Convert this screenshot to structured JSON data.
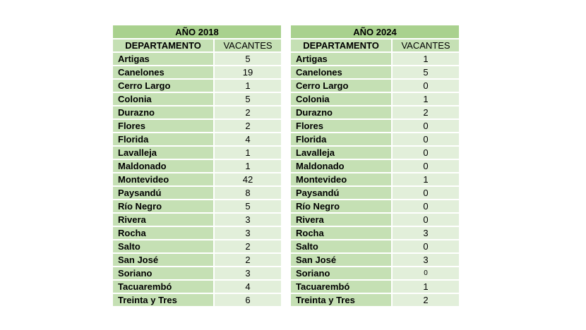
{
  "tables": [
    {
      "year_title": "AÑO 2018",
      "headers": [
        "DEPARTAMENTO",
        "VACANTES"
      ],
      "rows": [
        [
          "Artigas",
          "5"
        ],
        [
          "Canelones",
          "19"
        ],
        [
          "Cerro Largo",
          "1"
        ],
        [
          "Colonia",
          "5"
        ],
        [
          "Durazno",
          "2"
        ],
        [
          "Flores",
          "2"
        ],
        [
          "Florida",
          "4"
        ],
        [
          "Lavalleja",
          "1"
        ],
        [
          "Maldonado",
          "1"
        ],
        [
          "Montevideo",
          "42"
        ],
        [
          "Paysandú",
          "8"
        ],
        [
          "Río Negro",
          "5"
        ],
        [
          "Rivera",
          "3"
        ],
        [
          "Rocha",
          "3"
        ],
        [
          "Salto",
          "2"
        ],
        [
          "San José",
          "2"
        ],
        [
          "Soriano",
          "3"
        ],
        [
          "Tacuarembó",
          "4"
        ],
        [
          "Treinta y Tres",
          "6"
        ]
      ]
    },
    {
      "year_title": "AÑO 2024",
      "headers": [
        "DEPARTAMENTO",
        "VACANTES"
      ],
      "rows": [
        [
          "Artigas",
          "1"
        ],
        [
          "Canelones",
          "5"
        ],
        [
          "Cerro Largo",
          "0"
        ],
        [
          "Colonia",
          "1"
        ],
        [
          "Durazno",
          "2"
        ],
        [
          "Flores",
          "0"
        ],
        [
          "Florida",
          "0"
        ],
        [
          "Lavalleja",
          "0"
        ],
        [
          "Maldonado",
          "0"
        ],
        [
          "Montevideo",
          "1"
        ],
        [
          "Paysandú",
          "0"
        ],
        [
          "Río Negro",
          "0"
        ],
        [
          "Rivera",
          "0"
        ],
        [
          "Rocha",
          "3"
        ],
        [
          "Salto",
          "0"
        ],
        [
          "San José",
          "3"
        ],
        [
          "Soriano",
          "0"
        ],
        [
          "Tacuarembó",
          "1"
        ],
        [
          "Treinta y Tres",
          "2"
        ]
      ]
    }
  ]
}
